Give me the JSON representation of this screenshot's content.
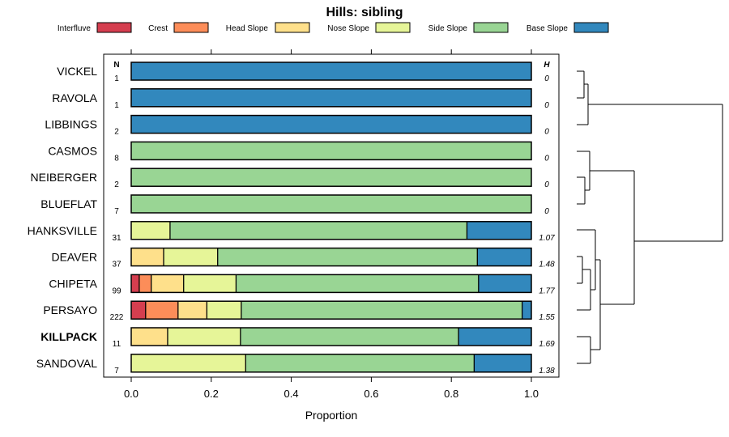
{
  "chart_data": {
    "type": "bar",
    "orientation": "horizontal-stacked",
    "title": "Hills: sibling",
    "xlabel": "Proportion",
    "ylabel": "",
    "xlim": [
      0,
      1
    ],
    "xticks": [
      "0.0",
      "0.2",
      "0.4",
      "0.6",
      "0.8",
      "1.0"
    ],
    "xtick_values": [
      0,
      0.2,
      0.4,
      0.6,
      0.8,
      1.0
    ],
    "n_header": "N",
    "h_header": "H",
    "legend": [
      {
        "name": "Interfluve",
        "color": "#d53e4f"
      },
      {
        "name": "Crest",
        "color": "#fc8d59"
      },
      {
        "name": "Head Slope",
        "color": "#fee08b"
      },
      {
        "name": "Nose Slope",
        "color": "#e6f598"
      },
      {
        "name": "Side Slope",
        "color": "#99d594"
      },
      {
        "name": "Base Slope",
        "color": "#3288bd"
      }
    ],
    "categories": [
      "VICKEL",
      "RAVOLA",
      "LIBBINGS",
      "CASMOS",
      "NEIBERGER",
      "BLUEFLAT",
      "HANKSVILLE",
      "DEAVER",
      "CHIPETA",
      "PERSAYO",
      "KILLPACK",
      "SANDOVAL"
    ],
    "highlight": "KILLPACK",
    "n": [
      "1",
      "1",
      "2",
      "8",
      "2",
      "7",
      "31",
      "37",
      "99",
      "222",
      "11",
      "7"
    ],
    "h": [
      "0",
      "0",
      "0",
      "0",
      "0",
      "0",
      "1.07",
      "1.48",
      "1.77",
      "1.55",
      "1.69",
      "1.38"
    ],
    "series": [
      {
        "name": "Interfluve",
        "values": [
          0,
          0,
          0,
          0,
          0,
          0,
          0,
          0,
          0.02,
          0.036,
          0,
          0
        ]
      },
      {
        "name": "Crest",
        "values": [
          0,
          0,
          0,
          0,
          0,
          0,
          0,
          0,
          0.03,
          0.081,
          0,
          0
        ]
      },
      {
        "name": "Head Slope",
        "values": [
          0,
          0,
          0,
          0,
          0,
          0,
          0,
          0.081,
          0.081,
          0.072,
          0.091,
          0
        ]
      },
      {
        "name": "Nose Slope",
        "values": [
          0,
          0,
          0,
          0,
          0,
          0,
          0.097,
          0.135,
          0.131,
          0.086,
          0.182,
          0.286
        ]
      },
      {
        "name": "Side Slope",
        "values": [
          0,
          0,
          0,
          1,
          1,
          1,
          0.742,
          0.649,
          0.606,
          0.702,
          0.545,
          0.571
        ]
      },
      {
        "name": "Base Slope",
        "values": [
          1,
          1,
          1,
          0,
          0,
          0,
          0.161,
          0.135,
          0.131,
          0.023,
          0.182,
          0.143
        ]
      }
    ]
  }
}
